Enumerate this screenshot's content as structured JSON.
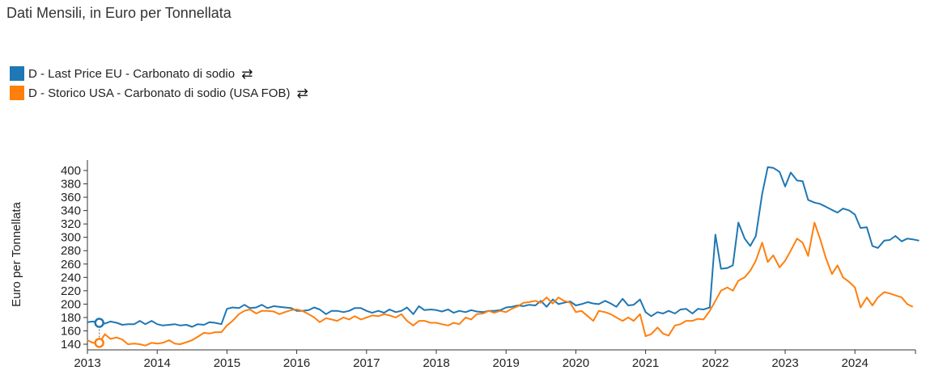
{
  "title": "Dati Mensili, in Euro per Tonnellata",
  "legend": [
    {
      "label": "D - Last Price EU - Carbonato di sodio",
      "color": "#1f77b4",
      "swap_icon": "swap-arrows-icon"
    },
    {
      "label": "D - Storico USA - Carbonato di sodio (USA FOB)",
      "color": "#ff7f0e",
      "swap_icon": "swap-arrows-icon"
    }
  ],
  "swap_glyph": "⇄",
  "chart_data": {
    "type": "line",
    "ylabel": "Euro per Tonnellata",
    "xlabel": "",
    "ylim": [
      130,
      410
    ],
    "xlim": [
      2013.0,
      2024.92
    ],
    "y_ticks": [
      "140",
      "160",
      "180",
      "200",
      "220",
      "240",
      "260",
      "280",
      "300",
      "320",
      "340",
      "360",
      "380",
      "400"
    ],
    "x_ticks": [
      "2013",
      "2014",
      "2015",
      "2016",
      "2017",
      "2018",
      "2019",
      "2020",
      "2021",
      "2022",
      "2023",
      "2024"
    ],
    "grid": false,
    "legend_position": "top-left",
    "series": [
      {
        "name": "D - Last Price EU - Carbonato di sodio",
        "color": "#1f77b4",
        "points": [
          [
            2013.0,
            173
          ],
          [
            2013.08,
            174
          ],
          [
            2013.17,
            172
          ],
          [
            2013.25,
            171
          ],
          [
            2013.33,
            174
          ],
          [
            2013.42,
            172
          ],
          [
            2013.5,
            169
          ],
          [
            2013.58,
            170
          ],
          [
            2013.67,
            170
          ],
          [
            2013.75,
            175
          ],
          [
            2013.83,
            170
          ],
          [
            2013.92,
            175
          ],
          [
            2014.0,
            170
          ],
          [
            2014.08,
            168
          ],
          [
            2014.17,
            169
          ],
          [
            2014.25,
            170
          ],
          [
            2014.33,
            168
          ],
          [
            2014.42,
            169
          ],
          [
            2014.5,
            166
          ],
          [
            2014.58,
            170
          ],
          [
            2014.67,
            169
          ],
          [
            2014.75,
            173
          ],
          [
            2014.83,
            172
          ],
          [
            2014.92,
            170
          ],
          [
            2015.0,
            193
          ],
          [
            2015.08,
            195
          ],
          [
            2015.17,
            194
          ],
          [
            2015.25,
            199
          ],
          [
            2015.33,
            194
          ],
          [
            2015.42,
            195
          ],
          [
            2015.5,
            199
          ],
          [
            2015.58,
            194
          ],
          [
            2015.67,
            197
          ],
          [
            2015.75,
            196
          ],
          [
            2015.83,
            195
          ],
          [
            2015.92,
            194
          ],
          [
            2016.0,
            190
          ],
          [
            2016.08,
            190
          ],
          [
            2016.17,
            191
          ],
          [
            2016.25,
            195
          ],
          [
            2016.33,
            192
          ],
          [
            2016.42,
            185
          ],
          [
            2016.5,
            190
          ],
          [
            2016.58,
            190
          ],
          [
            2016.67,
            188
          ],
          [
            2016.75,
            190
          ],
          [
            2016.83,
            194
          ],
          [
            2016.92,
            194
          ],
          [
            2017.0,
            190
          ],
          [
            2017.08,
            187
          ],
          [
            2017.17,
            190
          ],
          [
            2017.25,
            187
          ],
          [
            2017.33,
            192
          ],
          [
            2017.42,
            188
          ],
          [
            2017.5,
            190
          ],
          [
            2017.58,
            195
          ],
          [
            2017.67,
            185
          ],
          [
            2017.75,
            197
          ],
          [
            2017.83,
            191
          ],
          [
            2017.92,
            192
          ],
          [
            2018.0,
            191
          ],
          [
            2018.08,
            189
          ],
          [
            2018.17,
            192
          ],
          [
            2018.25,
            187
          ],
          [
            2018.33,
            190
          ],
          [
            2018.42,
            188
          ],
          [
            2018.5,
            191
          ],
          [
            2018.58,
            189
          ],
          [
            2018.67,
            188
          ],
          [
            2018.75,
            190
          ],
          [
            2018.83,
            190
          ],
          [
            2018.92,
            191
          ],
          [
            2019.0,
            195
          ],
          [
            2019.08,
            196
          ],
          [
            2019.17,
            198
          ],
          [
            2019.25,
            197
          ],
          [
            2019.33,
            199
          ],
          [
            2019.42,
            198
          ],
          [
            2019.5,
            205
          ],
          [
            2019.58,
            196
          ],
          [
            2019.67,
            207
          ],
          [
            2019.75,
            200
          ],
          [
            2019.83,
            202
          ],
          [
            2019.92,
            204
          ],
          [
            2020.0,
            198
          ],
          [
            2020.08,
            200
          ],
          [
            2020.17,
            203
          ],
          [
            2020.25,
            201
          ],
          [
            2020.33,
            200
          ],
          [
            2020.42,
            205
          ],
          [
            2020.5,
            201
          ],
          [
            2020.58,
            196
          ],
          [
            2020.67,
            208
          ],
          [
            2020.75,
            198
          ],
          [
            2020.83,
            199
          ],
          [
            2020.92,
            207
          ],
          [
            2021.0,
            188
          ],
          [
            2021.08,
            182
          ],
          [
            2021.17,
            188
          ],
          [
            2021.25,
            186
          ],
          [
            2021.33,
            190
          ],
          [
            2021.42,
            186
          ],
          [
            2021.5,
            192
          ],
          [
            2021.58,
            193
          ],
          [
            2021.67,
            186
          ],
          [
            2021.75,
            193
          ],
          [
            2021.83,
            192
          ],
          [
            2021.92,
            195
          ],
          [
            2022.0,
            304
          ],
          [
            2022.08,
            253
          ],
          [
            2022.17,
            254
          ],
          [
            2022.25,
            258
          ],
          [
            2022.33,
            322
          ],
          [
            2022.42,
            298
          ],
          [
            2022.5,
            287
          ],
          [
            2022.58,
            302
          ],
          [
            2022.67,
            365
          ],
          [
            2022.75,
            405
          ],
          [
            2022.83,
            404
          ],
          [
            2022.92,
            398
          ],
          [
            2023.0,
            376
          ],
          [
            2023.08,
            397
          ],
          [
            2023.17,
            385
          ],
          [
            2023.25,
            384
          ],
          [
            2023.33,
            356
          ],
          [
            2023.42,
            352
          ],
          [
            2023.5,
            350
          ],
          [
            2023.58,
            346
          ],
          [
            2023.67,
            341
          ],
          [
            2023.75,
            337
          ],
          [
            2023.83,
            343
          ],
          [
            2023.92,
            340
          ],
          [
            2024.0,
            334
          ],
          [
            2024.08,
            314
          ],
          [
            2024.17,
            315
          ],
          [
            2024.25,
            287
          ],
          [
            2024.33,
            284
          ],
          [
            2024.42,
            295
          ],
          [
            2024.5,
            296
          ],
          [
            2024.58,
            302
          ],
          [
            2024.67,
            294
          ],
          [
            2024.75,
            298
          ],
          [
            2024.83,
            297
          ],
          [
            2024.92,
            295
          ]
        ]
      },
      {
        "name": "D - Storico USA - Carbonato di sodio (USA FOB)",
        "color": "#ff7f0e",
        "points": [
          [
            2013.0,
            146
          ],
          [
            2013.08,
            142
          ],
          [
            2013.17,
            142
          ],
          [
            2013.25,
            155
          ],
          [
            2013.33,
            148
          ],
          [
            2013.42,
            150
          ],
          [
            2013.5,
            147
          ],
          [
            2013.58,
            140
          ],
          [
            2013.67,
            141
          ],
          [
            2013.75,
            140
          ],
          [
            2013.83,
            138
          ],
          [
            2013.92,
            142
          ],
          [
            2014.0,
            141
          ],
          [
            2014.08,
            142
          ],
          [
            2014.17,
            146
          ],
          [
            2014.25,
            141
          ],
          [
            2014.33,
            140
          ],
          [
            2014.42,
            143
          ],
          [
            2014.5,
            146
          ],
          [
            2014.58,
            151
          ],
          [
            2014.67,
            157
          ],
          [
            2014.75,
            156
          ],
          [
            2014.83,
            158
          ],
          [
            2014.92,
            158
          ],
          [
            2015.0,
            168
          ],
          [
            2015.08,
            175
          ],
          [
            2015.17,
            185
          ],
          [
            2015.25,
            190
          ],
          [
            2015.33,
            192
          ],
          [
            2015.42,
            186
          ],
          [
            2015.5,
            190
          ],
          [
            2015.58,
            190
          ],
          [
            2015.67,
            189
          ],
          [
            2015.75,
            185
          ],
          [
            2015.83,
            188
          ],
          [
            2015.92,
            191
          ],
          [
            2016.0,
            192
          ],
          [
            2016.08,
            190
          ],
          [
            2016.17,
            185
          ],
          [
            2016.25,
            180
          ],
          [
            2016.33,
            173
          ],
          [
            2016.42,
            179
          ],
          [
            2016.5,
            177
          ],
          [
            2016.58,
            175
          ],
          [
            2016.67,
            180
          ],
          [
            2016.75,
            177
          ],
          [
            2016.83,
            182
          ],
          [
            2016.92,
            177
          ],
          [
            2017.0,
            180
          ],
          [
            2017.08,
            183
          ],
          [
            2017.17,
            182
          ],
          [
            2017.25,
            185
          ],
          [
            2017.33,
            183
          ],
          [
            2017.42,
            180
          ],
          [
            2017.5,
            185
          ],
          [
            2017.58,
            175
          ],
          [
            2017.67,
            168
          ],
          [
            2017.75,
            175
          ],
          [
            2017.83,
            175
          ],
          [
            2017.92,
            172
          ],
          [
            2018.0,
            172
          ],
          [
            2018.08,
            170
          ],
          [
            2018.17,
            168
          ],
          [
            2018.25,
            172
          ],
          [
            2018.33,
            170
          ],
          [
            2018.42,
            180
          ],
          [
            2018.5,
            177
          ],
          [
            2018.58,
            185
          ],
          [
            2018.67,
            186
          ],
          [
            2018.75,
            190
          ],
          [
            2018.83,
            187
          ],
          [
            2018.92,
            190
          ],
          [
            2019.0,
            188
          ],
          [
            2019.08,
            193
          ],
          [
            2019.17,
            197
          ],
          [
            2019.25,
            202
          ],
          [
            2019.33,
            203
          ],
          [
            2019.42,
            205
          ],
          [
            2019.5,
            202
          ],
          [
            2019.58,
            210
          ],
          [
            2019.67,
            201
          ],
          [
            2019.75,
            210
          ],
          [
            2019.83,
            205
          ],
          [
            2019.92,
            202
          ],
          [
            2020.0,
            188
          ],
          [
            2020.08,
            190
          ],
          [
            2020.17,
            182
          ],
          [
            2020.25,
            175
          ],
          [
            2020.33,
            190
          ],
          [
            2020.42,
            188
          ],
          [
            2020.5,
            185
          ],
          [
            2020.58,
            180
          ],
          [
            2020.67,
            175
          ],
          [
            2020.75,
            180
          ],
          [
            2020.83,
            175
          ],
          [
            2020.92,
            185
          ],
          [
            2021.0,
            152
          ],
          [
            2021.08,
            155
          ],
          [
            2021.17,
            165
          ],
          [
            2021.25,
            156
          ],
          [
            2021.33,
            153
          ],
          [
            2021.42,
            168
          ],
          [
            2021.5,
            170
          ],
          [
            2021.58,
            175
          ],
          [
            2021.67,
            175
          ],
          [
            2021.75,
            178
          ],
          [
            2021.83,
            177
          ],
          [
            2021.92,
            190
          ],
          [
            2022.0,
            205
          ],
          [
            2022.08,
            220
          ],
          [
            2022.17,
            225
          ],
          [
            2022.25,
            220
          ],
          [
            2022.33,
            235
          ],
          [
            2022.42,
            240
          ],
          [
            2022.5,
            250
          ],
          [
            2022.58,
            265
          ],
          [
            2022.67,
            292
          ],
          [
            2022.75,
            263
          ],
          [
            2022.83,
            273
          ],
          [
            2022.92,
            255
          ],
          [
            2023.0,
            265
          ],
          [
            2023.08,
            280
          ],
          [
            2023.17,
            298
          ],
          [
            2023.25,
            292
          ],
          [
            2023.33,
            272
          ],
          [
            2023.42,
            322
          ],
          [
            2023.5,
            298
          ],
          [
            2023.58,
            270
          ],
          [
            2023.67,
            245
          ],
          [
            2023.75,
            258
          ],
          [
            2023.83,
            240
          ],
          [
            2023.92,
            233
          ],
          [
            2024.0,
            225
          ],
          [
            2024.08,
            195
          ],
          [
            2024.17,
            210
          ],
          [
            2024.25,
            198
          ],
          [
            2024.33,
            210
          ],
          [
            2024.42,
            218
          ],
          [
            2024.5,
            216
          ],
          [
            2024.58,
            213
          ],
          [
            2024.67,
            210
          ],
          [
            2024.75,
            200
          ],
          [
            2024.83,
            196
          ]
        ]
      }
    ]
  }
}
